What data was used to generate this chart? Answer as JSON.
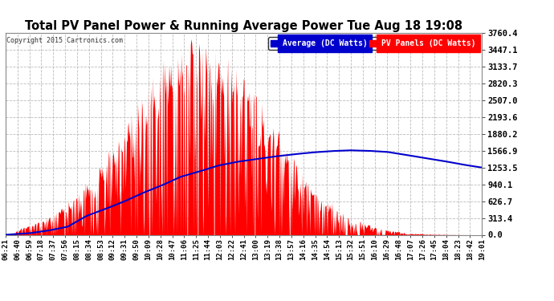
{
  "title": "Total PV Panel Power & Running Average Power Tue Aug 18 19:08",
  "copyright": "Copyright 2015 Cartronics.com",
  "legend_avg": "Average (DC Watts)",
  "legend_pv": "PV Panels (DC Watts)",
  "ymax": 3760.4,
  "yticks": [
    0.0,
    313.4,
    626.7,
    940.1,
    1253.5,
    1566.9,
    1880.2,
    2193.6,
    2507.0,
    2820.3,
    3133.7,
    3447.1,
    3760.4
  ],
  "ytick_labels": [
    "0.0",
    "313.4",
    "626.7",
    "940.1",
    "1253.5",
    "1566.9",
    "1880.2",
    "2193.6",
    "2507.0",
    "2820.3",
    "3133.7",
    "3447.1",
    "3760.4"
  ],
  "bg_color": "#ffffff",
  "plot_bg_color": "#ffffff",
  "grid_color": "#bbbbbb",
  "fill_color": "#ff0000",
  "avg_line_color": "#0000cc",
  "title_color": "#000000",
  "xtick_labels": [
    "06:21",
    "06:40",
    "06:59",
    "07:18",
    "07:37",
    "07:56",
    "08:15",
    "08:34",
    "08:53",
    "09:12",
    "09:31",
    "09:50",
    "10:09",
    "10:28",
    "10:47",
    "11:06",
    "11:25",
    "11:44",
    "12:03",
    "12:22",
    "12:41",
    "13:00",
    "13:19",
    "13:38",
    "13:57",
    "14:16",
    "14:35",
    "14:54",
    "15:13",
    "15:32",
    "15:51",
    "16:10",
    "16:29",
    "16:48",
    "17:07",
    "17:26",
    "17:45",
    "18:04",
    "18:23",
    "18:42",
    "19:01"
  ]
}
